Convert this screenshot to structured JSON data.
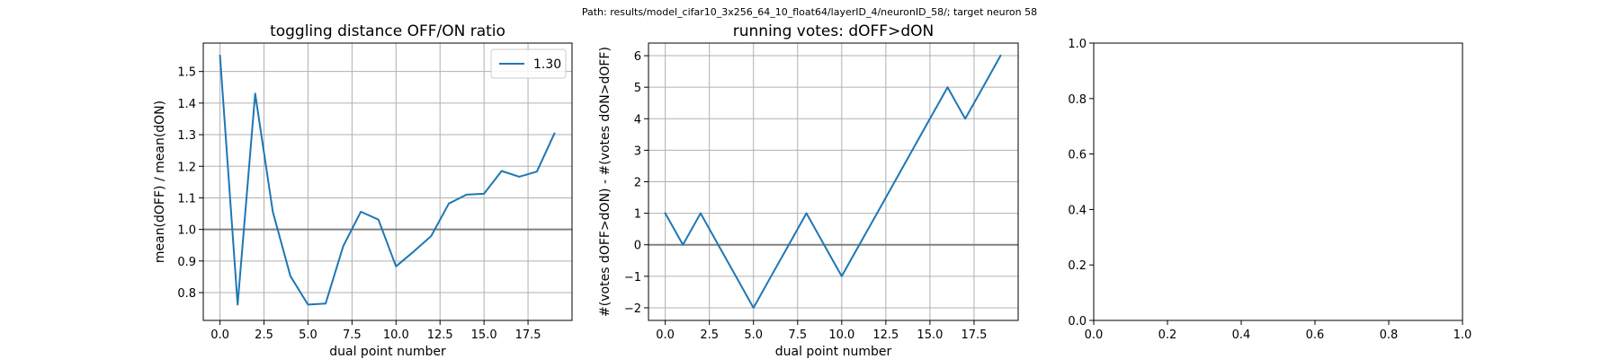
{
  "figure": {
    "suptitle": "Path: results/model_cifar10_3x256_64_10_float64/layerID_4/neuronID_58/; target neuron 58"
  },
  "colors": {
    "series": "#1f77b4",
    "grid": "#b0b0b0",
    "refline": "#808080",
    "axes": "#000000"
  },
  "chart_data": [
    {
      "type": "line",
      "title": "toggling distance OFF/ON ratio",
      "xlabel": "dual point number",
      "ylabel": "mean(dOFF) / mean(dON)",
      "xlim": [
        -0.95,
        20.0
      ],
      "ylim": [
        0.712,
        1.59
      ],
      "xticks": [
        0.0,
        2.5,
        5.0,
        7.5,
        10.0,
        12.5,
        15.0,
        17.5
      ],
      "xtick_labels": [
        "0.0",
        "2.5",
        "5.0",
        "7.5",
        "10.0",
        "12.5",
        "15.0",
        "17.5"
      ],
      "yticks": [
        0.8,
        0.9,
        1.0,
        1.1,
        1.2,
        1.3,
        1.4,
        1.5
      ],
      "ytick_labels": [
        "0.8",
        "0.9",
        "1.0",
        "1.1",
        "1.2",
        "1.3",
        "1.4",
        "1.5"
      ],
      "grid": true,
      "reference_line": 1.0,
      "legend": {
        "position": "top-right",
        "entries": [
          "1.30"
        ]
      },
      "series": [
        {
          "name": "1.30",
          "x": [
            0,
            1,
            2,
            3,
            4,
            5,
            6,
            7,
            8,
            9,
            10,
            11,
            12,
            13,
            14,
            15,
            16,
            17,
            18,
            19
          ],
          "y": [
            1.55,
            0.762,
            1.43,
            1.056,
            0.852,
            0.762,
            0.765,
            0.947,
            1.056,
            1.031,
            0.883,
            0.93,
            0.979,
            1.082,
            1.11,
            1.113,
            1.185,
            1.167,
            1.183,
            1.304
          ]
        }
      ]
    },
    {
      "type": "line",
      "title": "running votes: dOFF>dON",
      "xlabel": "dual point number",
      "ylabel": "#(votes dOFF>dON) - #(votes dON>dOFF)",
      "xlim": [
        -0.95,
        20.0
      ],
      "ylim": [
        -2.4,
        6.4
      ],
      "xticks": [
        0.0,
        2.5,
        5.0,
        7.5,
        10.0,
        12.5,
        15.0,
        17.5
      ],
      "xtick_labels": [
        "0.0",
        "2.5",
        "5.0",
        "7.5",
        "10.0",
        "12.5",
        "15.0",
        "17.5"
      ],
      "yticks": [
        -2,
        -1,
        0,
        1,
        2,
        3,
        4,
        5,
        6
      ],
      "ytick_labels": [
        "−2",
        "−1",
        "0",
        "1",
        "2",
        "3",
        "4",
        "5",
        "6"
      ],
      "grid": true,
      "reference_line": 0,
      "series": [
        {
          "x": [
            0,
            1,
            2,
            3,
            4,
            5,
            6,
            7,
            8,
            9,
            10,
            11,
            12,
            13,
            14,
            15,
            16,
            17,
            18,
            19
          ],
          "y": [
            1,
            0,
            1,
            0,
            -1,
            -2,
            -1,
            0,
            1,
            0,
            -1,
            0,
            1,
            2,
            3,
            4,
            5,
            4,
            5,
            6
          ]
        }
      ]
    },
    {
      "type": "line",
      "title": "",
      "xlabel": "",
      "ylabel": "",
      "xlim": [
        0.0,
        1.0
      ],
      "ylim": [
        0.0,
        1.0
      ],
      "xticks": [
        0.0,
        0.2,
        0.4,
        0.6,
        0.8,
        1.0
      ],
      "xtick_labels": [
        "0.0",
        "0.2",
        "0.4",
        "0.6",
        "0.8",
        "1.0"
      ],
      "yticks": [
        0.0,
        0.2,
        0.4,
        0.6,
        0.8,
        1.0
      ],
      "ytick_labels": [
        "0.0",
        "0.2",
        "0.4",
        "0.6",
        "0.8",
        "1.0"
      ],
      "grid": false,
      "series": []
    }
  ]
}
